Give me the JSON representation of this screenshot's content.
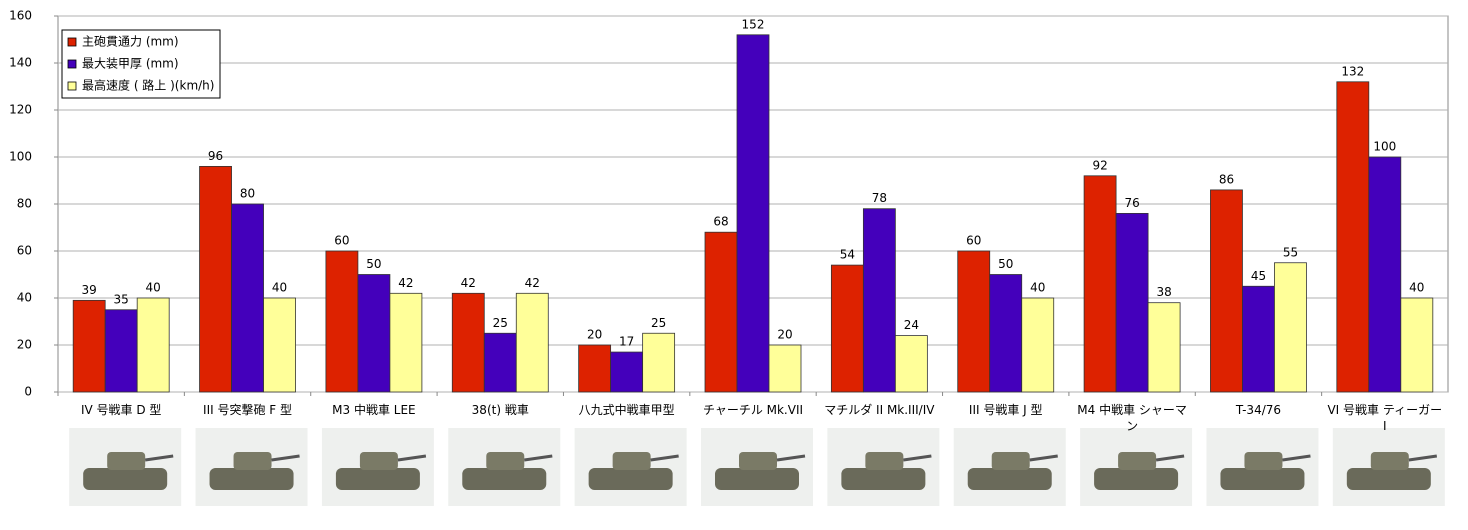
{
  "chart_data": {
    "type": "bar",
    "categories": [
      "IV 号戦車 D 型",
      "III 号突撃砲 F 型",
      "M3 中戦車 LEE",
      "38(t) 戦車",
      "八九式中戦車甲型",
      "チャーチル Mk.VII",
      "マチルダ II Mk.III/IV",
      "III 号戦車 J 型",
      "M4 中戦車 シャーマン",
      "T-34/76",
      "VI 号戦車 ティーガー I"
    ],
    "series": [
      {
        "name": "主砲貫通力 (mm)",
        "color": "#dd2200",
        "values": [
          39,
          96,
          60,
          42,
          20,
          68,
          54,
          60,
          92,
          86,
          132
        ]
      },
      {
        "name": "最大装甲厚 (mm)",
        "color": "#4400bb",
        "values": [
          35,
          80,
          50,
          25,
          17,
          152,
          78,
          50,
          76,
          45,
          100
        ]
      },
      {
        "name": "最高速度 ( 路上 )(km/h)",
        "color": "#ffff99",
        "values": [
          40,
          40,
          42,
          42,
          25,
          20,
          24,
          40,
          38,
          55,
          40
        ]
      }
    ],
    "ylim": [
      0,
      160
    ],
    "yticks": [
      0,
      20,
      40,
      60,
      80,
      100,
      120,
      140,
      160
    ],
    "grid": true,
    "legend": "top-left"
  }
}
